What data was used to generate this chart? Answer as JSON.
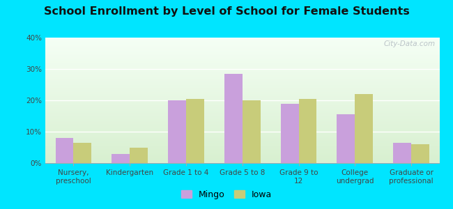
{
  "title": "School Enrollment by Level of School for Female Students",
  "categories": [
    "Nursery,\npreschool",
    "Kindergarten",
    "Grade 1 to 4",
    "Grade 5 to 8",
    "Grade 9 to\n12",
    "College\nundergrad",
    "Graduate or\nprofessional"
  ],
  "mingo_values": [
    8.0,
    3.0,
    20.0,
    28.5,
    19.0,
    15.5,
    6.5
  ],
  "iowa_values": [
    6.5,
    5.0,
    20.5,
    20.0,
    20.5,
    22.0,
    6.0
  ],
  "mingo_color": "#c9a0dc",
  "iowa_color": "#c8cc7a",
  "background_outer": "#00e5ff",
  "ylim": [
    0,
    40
  ],
  "yticks": [
    0,
    10,
    20,
    30,
    40
  ],
  "legend_mingo": "Mingo",
  "legend_iowa": "Iowa",
  "grad_top": "#f5fff5",
  "grad_bottom": "#d8f0d0",
  "watermark": "City-Data.com",
  "title_fontsize": 11.5,
  "tick_fontsize": 7.5
}
